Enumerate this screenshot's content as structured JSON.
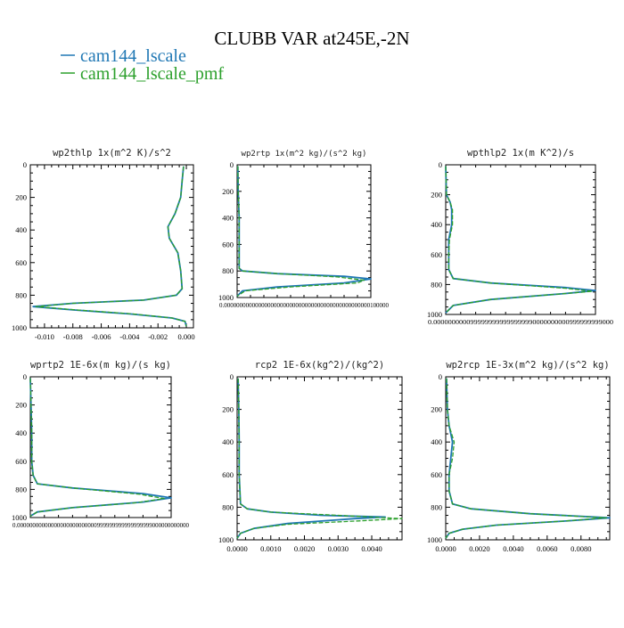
{
  "figure": {
    "title": "CLUBB VAR at245E,-2N",
    "legend": [
      {
        "label": "cam144_lscale",
        "color": "#1f77b4"
      },
      {
        "label": "cam144_lscale_pmf",
        "color": "#2ca02c"
      }
    ]
  },
  "chart_data": [
    {
      "type": "line",
      "title": "wp2thlp  1x(m^2 K)/s^2",
      "xlim": [
        -0.011,
        0.0005
      ],
      "ylim": [
        1000,
        0
      ],
      "xticks": [
        -0.01,
        -0.008,
        -0.006,
        -0.004,
        -0.002,
        0.0
      ],
      "xticklabels": [
        "-0.010",
        "-0.008",
        "-0.006",
        "-0.004",
        "-0.002",
        "0.000"
      ],
      "yticks": [
        0,
        200,
        400,
        600,
        800,
        1000
      ],
      "yticklabels": [
        "0",
        "200",
        "400",
        "600",
        "800",
        "1000"
      ],
      "series": [
        {
          "name": "cam144_lscale",
          "color": "#1f77b4",
          "dash": "solid",
          "points": [
            [
              -0.0002,
              10
            ],
            [
              -0.0003,
              100
            ],
            [
              -0.0004,
              200
            ],
            [
              -0.0008,
              300
            ],
            [
              -0.0013,
              380
            ],
            [
              -0.0012,
              450
            ],
            [
              -0.0006,
              540
            ],
            [
              -0.0004,
              650
            ],
            [
              -0.0003,
              760
            ],
            [
              -0.0007,
              800
            ],
            [
              -0.003,
              830
            ],
            [
              -0.008,
              850
            ],
            [
              -0.0108,
              870
            ],
            [
              -0.008,
              890
            ],
            [
              -0.004,
              915
            ],
            [
              -0.001,
              940
            ],
            [
              -0.0001,
              960
            ],
            [
              0.0,
              990
            ]
          ]
        },
        {
          "name": "cam144_lscale_pmf",
          "color": "#2ca02c",
          "dash": "dashed",
          "points": [
            [
              -0.0002,
              10
            ],
            [
              -0.0003,
              100
            ],
            [
              -0.0004,
              200
            ],
            [
              -0.0008,
              300
            ],
            [
              -0.0013,
              380
            ],
            [
              -0.0012,
              450
            ],
            [
              -0.0006,
              540
            ],
            [
              -0.0004,
              650
            ],
            [
              -0.0003,
              760
            ],
            [
              -0.0007,
              800
            ],
            [
              -0.003,
              830
            ],
            [
              -0.008,
              850
            ],
            [
              -0.0106,
              870
            ],
            [
              -0.0078,
              890
            ],
            [
              -0.0038,
              915
            ],
            [
              -0.001,
              940
            ],
            [
              -0.0001,
              960
            ],
            [
              0.0,
              990
            ]
          ]
        }
      ]
    },
    {
      "type": "line",
      "title": "wp2rtp  1x(m^2 kg)/(s^2 kg)",
      "xlim": [
        0,
        0.0001
      ],
      "ylim": [
        1000,
        0
      ],
      "xticks": [
        0
      ],
      "xticklabels": [
        "0.00000000000000000000000000000000000000000000000100000"
      ],
      "yticks": [
        0,
        200,
        400,
        600,
        800,
        1000
      ],
      "yticklabels": [
        "0",
        "200",
        "400",
        "600",
        "800",
        "1000"
      ],
      "series": [
        {
          "name": "cam144_lscale",
          "color": "#1f77b4",
          "dash": "solid",
          "points": [
            [
              5e-07,
              10
            ],
            [
              8e-07,
              200
            ],
            [
              1.5e-06,
              400
            ],
            [
              1.5e-06,
              600
            ],
            [
              1.5e-06,
              780
            ],
            [
              4e-06,
              800
            ],
            [
              3e-05,
              820
            ],
            [
              8e-05,
              840
            ],
            [
              0.0001,
              860
            ],
            [
              8e-05,
              890
            ],
            [
              3e-05,
              920
            ],
            [
              4e-06,
              950
            ],
            [
              0.0,
              990
            ]
          ]
        },
        {
          "name": "cam144_lscale_pmf",
          "color": "#2ca02c",
          "dash": "dashed",
          "points": [
            [
              5e-07,
              10
            ],
            [
              8e-07,
              200
            ],
            [
              1.5e-06,
              400
            ],
            [
              1.5e-06,
              600
            ],
            [
              1.5e-06,
              780
            ],
            [
              4e-06,
              800
            ],
            [
              3e-05,
              820
            ],
            [
              7.5e-05,
              845
            ],
            [
              9.5e-05,
              870
            ],
            [
              9e-05,
              890
            ],
            [
              4e-05,
              920
            ],
            [
              6e-06,
              950
            ],
            [
              0.0,
              990
            ]
          ]
        }
      ]
    },
    {
      "type": "line",
      "title": "wpthlp2  1x(m K^2)/s",
      "xlim": [
        0,
        1
      ],
      "ylim": [
        1000,
        0
      ],
      "xticks": [
        0
      ],
      "xticklabels": [
        "0.0000000000999999999999999990000000000999999999000"
      ],
      "yticks": [
        0,
        200,
        400,
        600,
        800,
        1000
      ],
      "yticklabels": [
        "0",
        "200",
        "400",
        "600",
        "800",
        "1000"
      ],
      "series": [
        {
          "name": "cam144_lscale",
          "color": "#1f77b4",
          "dash": "solid",
          "points": [
            [
              0.0,
              10
            ],
            [
              0.005,
              200
            ],
            [
              0.03,
              250
            ],
            [
              0.04,
              300
            ],
            [
              0.04,
              400
            ],
            [
              0.02,
              500
            ],
            [
              0.02,
              600
            ],
            [
              0.02,
              700
            ],
            [
              0.05,
              760
            ],
            [
              0.3,
              790
            ],
            [
              0.8,
              820
            ],
            [
              1.0,
              840
            ],
            [
              0.8,
              860
            ],
            [
              0.3,
              900
            ],
            [
              0.05,
              940
            ],
            [
              0.0,
              990
            ]
          ]
        },
        {
          "name": "cam144_lscale_pmf",
          "color": "#2ca02c",
          "dash": "dashed",
          "points": [
            [
              0.0,
              10
            ],
            [
              0.005,
              200
            ],
            [
              0.03,
              250
            ],
            [
              0.045,
              300
            ],
            [
              0.045,
              400
            ],
            [
              0.025,
              500
            ],
            [
              0.02,
              600
            ],
            [
              0.02,
              700
            ],
            [
              0.05,
              760
            ],
            [
              0.3,
              790
            ],
            [
              0.8,
              825
            ],
            [
              0.98,
              845
            ],
            [
              0.8,
              860
            ],
            [
              0.3,
              900
            ],
            [
              0.05,
              940
            ],
            [
              0.0,
              990
            ]
          ]
        }
      ]
    },
    {
      "type": "line",
      "title": "wprtp2  1E-6x(m kg)/(s kg)",
      "xlim": [
        0,
        1
      ],
      "ylim": [
        1000,
        0
      ],
      "xticks": [
        0
      ],
      "xticklabels": [
        "0.00000000000000000000000000999999999999999999000000000000"
      ],
      "yticks": [
        0,
        200,
        400,
        600,
        800,
        1000
      ],
      "yticklabels": [
        "0",
        "200",
        "400",
        "600",
        "800",
        "1000"
      ],
      "series": [
        {
          "name": "cam144_lscale",
          "color": "#1f77b4",
          "dash": "solid",
          "points": [
            [
              0.0,
              10
            ],
            [
              0.005,
              200
            ],
            [
              0.01,
              400
            ],
            [
              0.01,
              600
            ],
            [
              0.02,
              700
            ],
            [
              0.05,
              760
            ],
            [
              0.3,
              790
            ],
            [
              0.8,
              830
            ],
            [
              1.0,
              860
            ],
            [
              0.8,
              890
            ],
            [
              0.3,
              930
            ],
            [
              0.05,
              960
            ],
            [
              0.0,
              990
            ]
          ]
        },
        {
          "name": "cam144_lscale_pmf",
          "color": "#2ca02c",
          "dash": "dashed",
          "points": [
            [
              0.0,
              10
            ],
            [
              0.005,
              200
            ],
            [
              0.01,
              400
            ],
            [
              0.01,
              600
            ],
            [
              0.02,
              700
            ],
            [
              0.05,
              760
            ],
            [
              0.3,
              790
            ],
            [
              0.78,
              835
            ],
            [
              0.95,
              865
            ],
            [
              0.75,
              895
            ],
            [
              0.3,
              930
            ],
            [
              0.05,
              960
            ],
            [
              0.0,
              990
            ]
          ]
        }
      ]
    },
    {
      "type": "line",
      "title": "rcp2  1E-6x(kg^2)/(kg^2)",
      "xlim": [
        0,
        0.0049
      ],
      "ylim": [
        1000,
        0
      ],
      "xticks": [
        0.0,
        0.001,
        0.002,
        0.003,
        0.004
      ],
      "xticklabels": [
        "0.0000",
        "0.0010",
        "0.0020",
        "0.0030",
        "0.0040"
      ],
      "yticks": [
        0,
        200,
        400,
        600,
        800,
        1000
      ],
      "yticklabels": [
        "0",
        "200",
        "400",
        "600",
        "800",
        "1000"
      ],
      "series": [
        {
          "name": "cam144_lscale",
          "color": "#1f77b4",
          "dash": "solid",
          "points": [
            [
              3e-05,
              10
            ],
            [
              5e-05,
              200
            ],
            [
              6e-05,
              400
            ],
            [
              6e-05,
              600
            ],
            [
              0.0001,
              780
            ],
            [
              0.0003,
              810
            ],
            [
              0.001,
              830
            ],
            [
              0.0025,
              850
            ],
            [
              0.0044,
              860
            ],
            [
              0.0035,
              870
            ],
            [
              0.0015,
              900
            ],
            [
              0.0005,
              930
            ],
            [
              0.0001,
              960
            ],
            [
              0.0,
              990
            ]
          ]
        },
        {
          "name": "cam144_lscale_pmf",
          "color": "#2ca02c",
          "dash": "dashed",
          "points": [
            [
              3e-05,
              10
            ],
            [
              5e-05,
              200
            ],
            [
              6e-05,
              400
            ],
            [
              6e-05,
              600
            ],
            [
              0.0001,
              780
            ],
            [
              0.0003,
              810
            ],
            [
              0.001,
              830
            ],
            [
              0.003,
              850
            ],
            [
              0.0049,
              870
            ],
            [
              0.0035,
              885
            ],
            [
              0.0015,
              905
            ],
            [
              0.0005,
              930
            ],
            [
              0.0001,
              960
            ],
            [
              0.0,
              990
            ]
          ]
        }
      ]
    },
    {
      "type": "line",
      "title": "wp2rcp  1E-3x(m^2 kg)/(s^2 kg)",
      "xlim": [
        0,
        0.0097
      ],
      "ylim": [
        1000,
        0
      ],
      "xticks": [
        0.0,
        0.002,
        0.004,
        0.006,
        0.008
      ],
      "xticklabels": [
        "0.0000",
        "0.0020",
        "0.0040",
        "0.0060",
        "0.0080"
      ],
      "yticks": [
        0,
        200,
        400,
        600,
        800,
        1000
      ],
      "yticklabels": [
        "0",
        "200",
        "400",
        "600",
        "800",
        "1000"
      ],
      "series": [
        {
          "name": "cam144_lscale",
          "color": "#1f77b4",
          "dash": "solid",
          "points": [
            [
              5e-05,
              10
            ],
            [
              0.0001,
              200
            ],
            [
              0.0002,
              300
            ],
            [
              0.0004,
              400
            ],
            [
              0.0003,
              500
            ],
            [
              0.0002,
              600
            ],
            [
              0.0002,
              700
            ],
            [
              0.0004,
              780
            ],
            [
              0.0015,
              810
            ],
            [
              0.005,
              840
            ],
            [
              0.0097,
              865
            ],
            [
              0.007,
              885
            ],
            [
              0.003,
              910
            ],
            [
              0.001,
              935
            ],
            [
              0.0002,
              960
            ],
            [
              0.0,
              990
            ]
          ]
        },
        {
          "name": "cam144_lscale_pmf",
          "color": "#2ca02c",
          "dash": "dashed",
          "points": [
            [
              5e-05,
              10
            ],
            [
              0.0001,
              200
            ],
            [
              0.0002,
              300
            ],
            [
              0.0005,
              400
            ],
            [
              0.0004,
              500
            ],
            [
              0.0002,
              600
            ],
            [
              0.0002,
              700
            ],
            [
              0.0004,
              780
            ],
            [
              0.0015,
              810
            ],
            [
              0.005,
              840
            ],
            [
              0.0095,
              865
            ],
            [
              0.007,
              885
            ],
            [
              0.003,
              910
            ],
            [
              0.001,
              935
            ],
            [
              0.0002,
              960
            ],
            [
              0.0,
              990
            ]
          ]
        }
      ]
    }
  ]
}
